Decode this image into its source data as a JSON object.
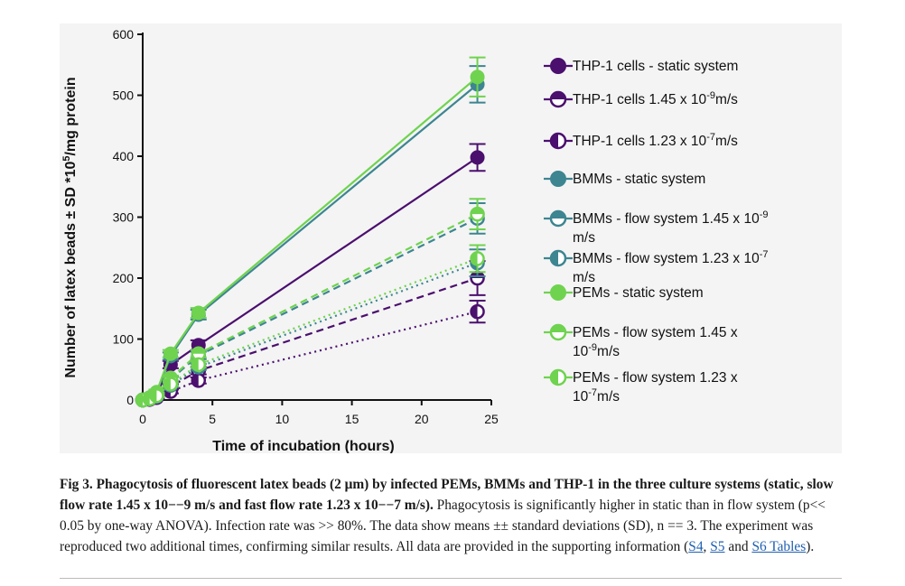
{
  "chart_data": {
    "type": "line",
    "xlabel": "Time of incubation (hours)",
    "ylabel": "Number of latex beads ± SD *10",
    "ylabel_sup": "5",
    "ylabel_suffix": "/mg protein",
    "xlim": [
      0,
      25
    ],
    "ylim": [
      0,
      600
    ],
    "xticks": [
      0,
      5,
      10,
      15,
      20,
      25
    ],
    "yticks": [
      0,
      100,
      200,
      300,
      400,
      500,
      600
    ],
    "x": [
      0,
      0.5,
      1,
      2,
      4,
      24
    ],
    "series": [
      {
        "name": "THP-1 cells - static system",
        "color": "#4b0f6e",
        "marker": "filled",
        "line": "solid",
        "values": [
          0,
          3,
          10,
          58,
          90,
          398
        ],
        "err": [
          0,
          2,
          4,
          6,
          8,
          22
        ]
      },
      {
        "name": "THP-1 cells 1.45 x 10",
        "name_sup": "-9",
        "name_suffix": "m/s",
        "color": "#4b0f6e",
        "marker": "half-h",
        "line": "dashed",
        "values": [
          0,
          2,
          6,
          22,
          48,
          200
        ],
        "err": [
          0,
          1,
          3,
          4,
          6,
          28
        ]
      },
      {
        "name": "THP-1 cells 1.23 x 10",
        "name_sup": "-7",
        "name_suffix": "m/s",
        "color": "#4b0f6e",
        "marker": "half-v",
        "line": "dotted",
        "values": [
          0,
          1,
          4,
          14,
          32,
          145
        ],
        "err": [
          0,
          1,
          2,
          3,
          5,
          18
        ]
      },
      {
        "name": "BMMs - static system",
        "color": "#3d8591",
        "marker": "filled",
        "line": "solid",
        "values": [
          0,
          4,
          12,
          72,
          140,
          518
        ],
        "err": [
          0,
          2,
          4,
          6,
          8,
          30
        ]
      },
      {
        "name": "BMMs - flow system 1.45 x 10",
        "name_sup": "-9",
        "name_line2": "m/s",
        "color": "#3d8591",
        "marker": "half-h",
        "line": "dashed",
        "values": [
          0,
          3,
          8,
          34,
          73,
          298
        ],
        "err": [
          0,
          2,
          3,
          4,
          6,
          25
        ]
      },
      {
        "name": "BMMs - flow system 1.23 x 10",
        "name_sup": "-7",
        "name_line2": "m/s",
        "color": "#3d8591",
        "marker": "half-v",
        "line": "dotted",
        "values": [
          0,
          2,
          6,
          24,
          54,
          225
        ],
        "err": [
          0,
          1,
          2,
          3,
          5,
          22
        ]
      },
      {
        "name": "PEMs - static system",
        "color": "#6fd34f",
        "marker": "filled",
        "line": "solid",
        "values": [
          0,
          4,
          13,
          76,
          143,
          530
        ],
        "err": [
          0,
          2,
          4,
          6,
          8,
          32
        ]
      },
      {
        "name": "PEMs - flow system 1.45 x",
        "name_line2": "10",
        "name_sup": "-9",
        "name_suffix": "m/s",
        "color": "#6fd34f",
        "marker": "half-h",
        "line": "dashed",
        "values": [
          0,
          3,
          9,
          36,
          76,
          305
        ],
        "err": [
          0,
          2,
          3,
          4,
          6,
          25
        ]
      },
      {
        "name": "PEMs - flow system 1.23 x",
        "name_line2": "10",
        "name_sup": "-7",
        "name_suffix": "m/s",
        "color": "#6fd34f",
        "marker": "half-v",
        "line": "dotted",
        "values": [
          0,
          2,
          7,
          26,
          58,
          232
        ],
        "err": [
          0,
          1,
          2,
          3,
          5,
          22
        ]
      }
    ]
  },
  "caption": {
    "bold": "Fig 3. Phagocytosis of fluorescent latex beads (2 μm) by infected PEMs, BMMs and THP-1 in the three culture systems (static, slow flow rate 1.45 x 10−−9 m/s and fast flow rate 1.23 x 10−−7 m/s).",
    "body": " Phagocytosis is significantly higher in static than in flow system (p<< 0.05 by one-way ANOVA). Infection rate was >> 80%. The data show means ±± standard deviations (SD), n == 3. The experiment was reproduced two additional times, confirming similar results. All data are provided in the supporting information (",
    "link1": "S4",
    "sep1": ", ",
    "link2": "S5",
    "sep2": " and ",
    "link3": "S6 Tables",
    "end": ")."
  }
}
